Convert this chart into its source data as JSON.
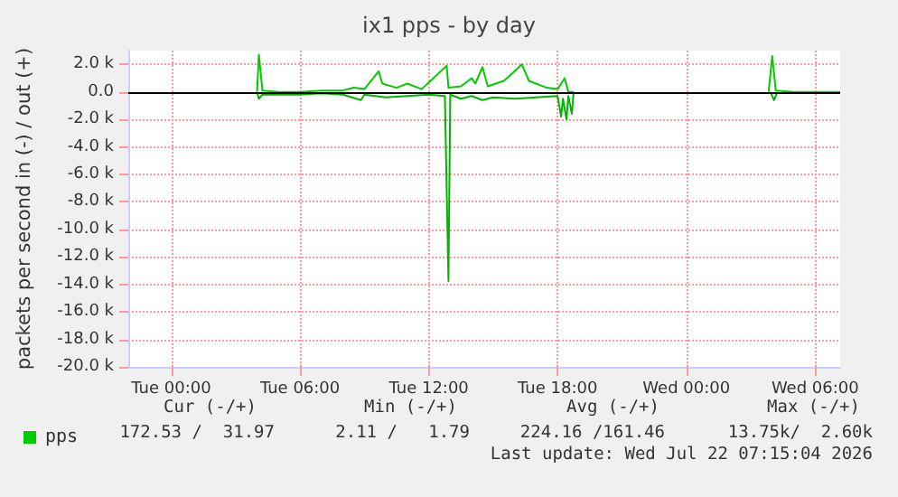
{
  "chart_data": {
    "type": "line",
    "title": "ix1 pps - by day",
    "ylabel": "packets per second in (-) / out (+)",
    "xlim": [
      "2026-07-20T22:00",
      "2026-07-22T07:10"
    ],
    "xticks": [
      {
        "value": "2026-07-21T00:00",
        "label": "Tue 00:00"
      },
      {
        "value": "2026-07-21T06:00",
        "label": "Tue 06:00"
      },
      {
        "value": "2026-07-21T12:00",
        "label": "Tue 12:00"
      },
      {
        "value": "2026-07-21T18:00",
        "label": "Tue 18:00"
      },
      {
        "value": "2026-07-22T00:00",
        "label": "Wed 00:00"
      },
      {
        "value": "2026-07-22T06:00",
        "label": "Wed 06:00"
      }
    ],
    "ylim": [
      -20000,
      3000
    ],
    "yticks": [
      {
        "value": -20000,
        "label": "-20.0 k"
      },
      {
        "value": -18000,
        "label": "-18.0 k"
      },
      {
        "value": -16000,
        "label": "-16.0 k"
      },
      {
        "value": -14000,
        "label": "-14.0 k"
      },
      {
        "value": -12000,
        "label": "-12.0 k"
      },
      {
        "value": -10000,
        "label": "-10.0 k"
      },
      {
        "value": -8000,
        "label": "-8.0 k"
      },
      {
        "value": -6000,
        "label": "-6.0 k"
      },
      {
        "value": -4000,
        "label": "-4.0 k"
      },
      {
        "value": -2000,
        "label": "-2.0 k"
      },
      {
        "value": 0,
        "label": "0.0"
      },
      {
        "value": 2000,
        "label": "2.0 k"
      }
    ],
    "grid": true,
    "legend": "bottom left",
    "marker": "none",
    "line_style": "solid",
    "ref_lines": [
      {
        "axis": "y",
        "value": 0,
        "color": "#000000"
      }
    ],
    "series": [
      {
        "name": "pps",
        "color": "#00cc00",
        "x": [
          "2026-07-21T04:00",
          "2026-07-21T04:05",
          "2026-07-21T04:15",
          "2026-07-21T05:00",
          "2026-07-21T06:00",
          "2026-07-21T07:00",
          "2026-07-21T08:00",
          "2026-07-21T08:30",
          "2026-07-21T09:00",
          "2026-07-21T09:40",
          "2026-07-21T09:50",
          "2026-07-21T10:30",
          "2026-07-21T11:00",
          "2026-07-21T11:40",
          "2026-07-21T12:50",
          "2026-07-21T12:55",
          "2026-07-21T13:30",
          "2026-07-21T14:00",
          "2026-07-21T14:10",
          "2026-07-21T14:30",
          "2026-07-21T14:45",
          "2026-07-21T15:30",
          "2026-07-21T16:00",
          "2026-07-21T16:20",
          "2026-07-21T16:40",
          "2026-07-21T17:30",
          "2026-07-21T18:00",
          "2026-07-21T18:20",
          "2026-07-21T18:30",
          "2026-07-21T18:45",
          "2026-07-21T20:00",
          "2026-07-22T03:50",
          "2026-07-22T04:00",
          "2026-07-22T04:10",
          "2026-07-22T05:00",
          "2026-07-22T06:00",
          "2026-07-22T07:10"
        ],
        "values": [
          0,
          2700,
          100,
          0,
          0,
          100,
          100,
          300,
          200,
          1500,
          600,
          300,
          600,
          200,
          1900,
          300,
          400,
          1000,
          600,
          1800,
          400,
          800,
          1500,
          2000,
          800,
          300,
          200,
          1000,
          0,
          0,
          null,
          0,
          2600,
          100,
          0,
          0,
          0
        ]
      },
      {
        "color": "#00b400",
        "x": [
          "2026-07-21T04:00",
          "2026-07-21T04:05",
          "2026-07-21T04:15",
          "2026-07-21T05:00",
          "2026-07-21T06:00",
          "2026-07-21T07:00",
          "2026-07-21T08:00",
          "2026-07-21T08:50",
          "2026-07-21T09:00",
          "2026-07-21T10:00",
          "2026-07-21T11:00",
          "2026-07-21T12:00",
          "2026-07-21T12:45",
          "2026-07-21T12:55",
          "2026-07-21T13:00",
          "2026-07-21T13:30",
          "2026-07-21T14:00",
          "2026-07-21T14:30",
          "2026-07-21T15:00",
          "2026-07-21T16:00",
          "2026-07-21T17:00",
          "2026-07-21T18:00",
          "2026-07-21T18:10",
          "2026-07-21T18:15",
          "2026-07-21T18:25",
          "2026-07-21T18:30",
          "2026-07-21T18:40",
          "2026-07-21T18:45",
          "2026-07-21T20:00",
          "2026-07-22T03:55",
          "2026-07-22T04:05",
          "2026-07-22T04:15"
        ],
        "values": [
          0,
          -500,
          -200,
          -200,
          -200,
          -100,
          -200,
          -600,
          -200,
          -400,
          -300,
          -200,
          -300,
          -13750,
          -200,
          -500,
          -300,
          -600,
          -400,
          -500,
          -400,
          -300,
          -1800,
          -500,
          -2000,
          -300,
          -1600,
          0,
          null,
          0,
          -600,
          0
        ]
      }
    ],
    "annotations": [
      "Cur (-/+)",
      "Min (-/+)",
      "Avg (-/+)",
      "Max (-/+)",
      "172.53 /  31.97",
      "2.11 /   1.79",
      "224.16 /161.46",
      "13.75k/  2.60k",
      "Last update: Wed Jul 22 07:15:04 2026"
    ]
  }
}
